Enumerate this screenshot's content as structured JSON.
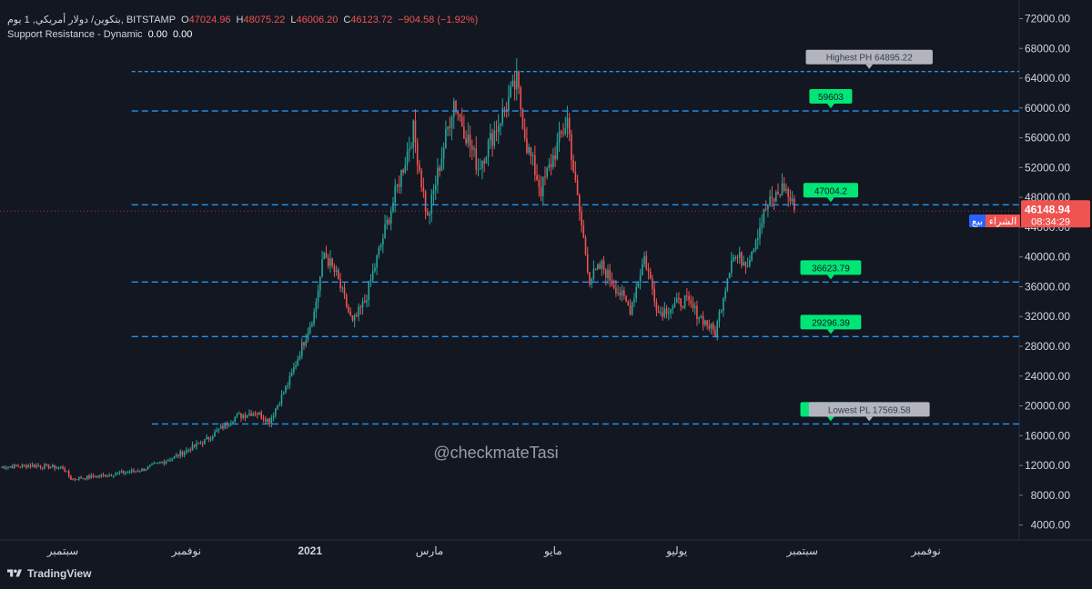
{
  "legend": {
    "symbol": "بتكوين/ دولار أمريكي, 1 يوم, BITSTAMP",
    "o_label": "O",
    "o": "47024.96",
    "h_label": "H",
    "h": "48075.22",
    "l_label": "L",
    "l": "46006.20",
    "c_label": "C",
    "c": "46123.72",
    "change": "−904.58 (−1.92%)",
    "indicator": "Support Resistance - Dynamic",
    "ind_v1": "0.00",
    "ind_v2": "0.00"
  },
  "buy_label": "بيع",
  "sell_label": "الشراء",
  "watermark": "@checkmateTasi",
  "brand": "TradingView",
  "colors": {
    "background": "#131722",
    "up": "#26a69a",
    "down": "#ef5350",
    "level_line": "#2196f3",
    "level_label_bg": "#00e676",
    "extreme_label_bg": "#b2b5be",
    "price_tag": "#ef5350"
  },
  "chart_data": {
    "type": "candlestick",
    "price_scale": "right",
    "ylim": [
      2000,
      74500
    ],
    "yticks": [
      "72000.00",
      "68000.00",
      "64000.00",
      "60000.00",
      "56000.00",
      "52000.00",
      "48000.00",
      "44000.00",
      "40000.00",
      "36000.00",
      "32000.00",
      "28000.00",
      "24000.00",
      "20000.00",
      "16000.00",
      "12000.00",
      "8000.00",
      "4000.00"
    ],
    "xticks": [
      {
        "label": "سبتمبر",
        "date": "2020-09-01"
      },
      {
        "label": "نوفمبر",
        "date": "2020-11-01"
      },
      {
        "label": "2021",
        "date": "2021-01-01",
        "bold": true
      },
      {
        "label": "مارس",
        "date": "2021-03-01"
      },
      {
        "label": "مايو",
        "date": "2021-05-01"
      },
      {
        "label": "يوليو",
        "date": "2021-07-01"
      },
      {
        "label": "سبتمبر",
        "date": "2021-09-01"
      },
      {
        "label": "نوفمبر",
        "date": "2021-11-01"
      }
    ],
    "x_start": "2020-08-01",
    "x_end": "2021-12-17",
    "current_price": "46148.94",
    "countdown": "08:34:29",
    "levels": [
      {
        "value": 64895.22,
        "label": "Highest PH 64895.22",
        "kind": "high",
        "from": "2020-10-05",
        "label_date": "2021-10-04"
      },
      {
        "value": 59603,
        "label": "59603",
        "kind": "level",
        "from": "2020-10-05",
        "label_date": "2021-09-15"
      },
      {
        "value": 47004.2,
        "label": "47004.2",
        "kind": "level",
        "from": "2020-10-05",
        "label_date": "2021-09-15"
      },
      {
        "value": 36623.79,
        "label": "36623.79",
        "kind": "level",
        "from": "2020-10-05",
        "label_date": "2021-09-15"
      },
      {
        "value": 29296.39,
        "label": "29296.39",
        "kind": "level",
        "from": "2020-10-05",
        "label_date": "2021-09-15"
      },
      {
        "value": 17569.58,
        "label": "17569.58",
        "kind": "level",
        "from": "2020-10-15",
        "label_date": "2021-09-15"
      },
      {
        "value": 17569.58,
        "label": "Lowest PL 17569.58",
        "kind": "low",
        "from": "2020-10-15",
        "label_date": "2021-10-04"
      }
    ],
    "price_path": [
      [
        "2020-08-01",
        11800
      ],
      [
        "2020-08-17",
        12000
      ],
      [
        "2020-09-01",
        11700
      ],
      [
        "2020-09-05",
        10200
      ],
      [
        "2020-09-20",
        10600
      ],
      [
        "2020-10-10",
        11400
      ],
      [
        "2020-10-25",
        13000
      ],
      [
        "2020-11-10",
        15300
      ],
      [
        "2020-11-25",
        18500
      ],
      [
        "2020-12-05",
        19200
      ],
      [
        "2020-12-12",
        18000
      ],
      [
        "2020-12-22",
        23500
      ],
      [
        "2021-01-03",
        32500
      ],
      [
        "2021-01-08",
        40500
      ],
      [
        "2021-01-14",
        37500
      ],
      [
        "2021-01-22",
        31000
      ],
      [
        "2021-01-28",
        34000
      ],
      [
        "2021-02-08",
        44500
      ],
      [
        "2021-02-21",
        57000
      ],
      [
        "2021-02-28",
        45000
      ],
      [
        "2021-03-13",
        61000
      ],
      [
        "2021-03-25",
        52000
      ],
      [
        "2021-04-13",
        63500
      ],
      [
        "2021-04-18",
        55000
      ],
      [
        "2021-04-25",
        49000
      ],
      [
        "2021-05-08",
        58500
      ],
      [
        "2021-05-12",
        49500
      ],
      [
        "2021-05-19",
        37000
      ],
      [
        "2021-05-25",
        38800
      ],
      [
        "2021-06-08",
        33000
      ],
      [
        "2021-06-15",
        40000
      ],
      [
        "2021-06-22",
        32500
      ],
      [
        "2021-07-05",
        34200
      ],
      [
        "2021-07-20",
        29800
      ],
      [
        "2021-07-28",
        40000
      ],
      [
        "2021-08-05",
        39500
      ],
      [
        "2021-08-14",
        46500
      ],
      [
        "2021-08-23",
        49500
      ],
      [
        "2021-08-28",
        46300
      ]
    ]
  }
}
